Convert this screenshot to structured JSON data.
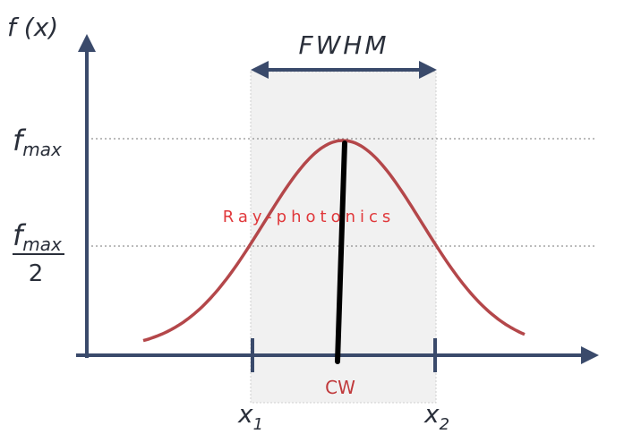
{
  "axis_label_y": {
    "base": "f",
    "rest": "(x)"
  },
  "span_label": "FWHM",
  "levels": [
    {
      "base": "f",
      "sub": "max"
    },
    {
      "base": "f",
      "sub": "max",
      "denominator": "2"
    }
  ],
  "x_marks": [
    {
      "base": "x",
      "sub": "1"
    },
    {
      "base": "x",
      "sub": "2"
    }
  ],
  "center_label": "CW",
  "watermark": "Ray-photonics"
}
